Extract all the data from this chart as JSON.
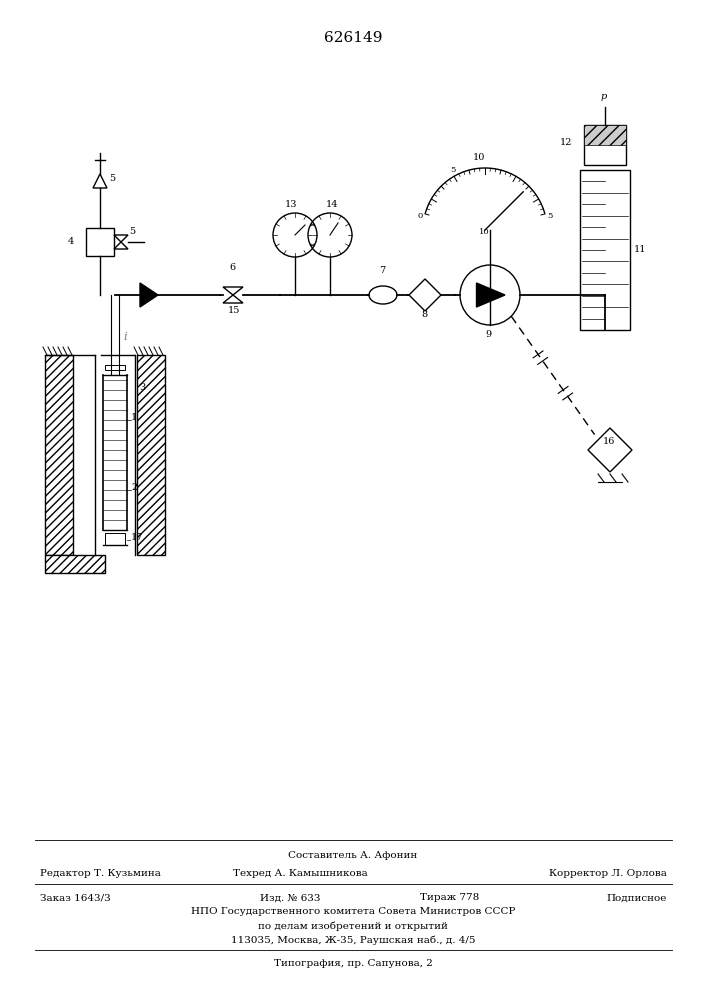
{
  "patent_number": "626149",
  "bg_color": "#ffffff",
  "line_color": "#000000",
  "footer": {
    "composer": "Составитель А. Афонин",
    "editor": "Редактор Т. Кузьмина",
    "techred": "Техред А. Камышникова",
    "corrector": "Корректор Л. Орлова",
    "order": "Заказ 1643/3",
    "izd": "Изд. № 633",
    "tirazh": "Тираж 778",
    "podpisnoe": "Подписное",
    "npo": "НПО Государственного комитета Совета Министров СССР",
    "depart": "по делам изобретений и открытий",
    "address": "113035, Москва, Ж-35, Раушская наб., д. 4/5",
    "typography": "Типография, пр. Сапунова, 2"
  }
}
